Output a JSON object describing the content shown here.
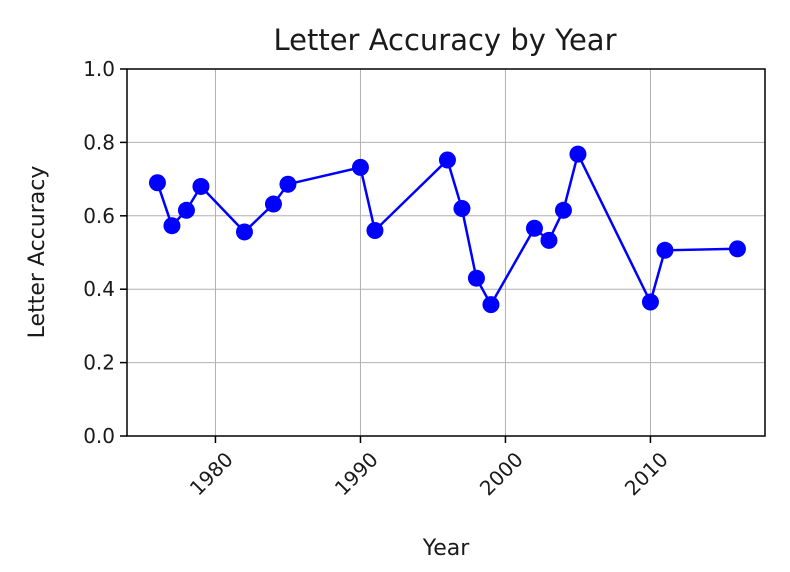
{
  "chart_data": {
    "type": "line",
    "title": "Letter Accuracy by Year",
    "xlabel": "Year",
    "ylabel": "Letter Accuracy",
    "xlim": [
      1973.9,
      1977.9
    ],
    "ylim": [
      0.0,
      1.0
    ],
    "x_ticks": [
      1980,
      1990,
      2000,
      2010
    ],
    "x_tick_labels": [
      "1980",
      "1990",
      "2000",
      "2010"
    ],
    "y_ticks": [
      0.0,
      0.2,
      0.4,
      0.6,
      0.8,
      1.0
    ],
    "y_tick_labels": [
      "0.0",
      "0.2",
      "0.4",
      "0.6",
      "0.8",
      "1.0"
    ],
    "grid": true,
    "series": [
      {
        "color": "#0000ff",
        "marker": "circle",
        "x": [
          1976,
          1977,
          1978,
          1979,
          1982,
          1984,
          1985,
          1990,
          1991,
          1996,
          1997,
          1998,
          1999,
          2002,
          2003,
          2004,
          2005,
          2010,
          2011,
          2016
        ],
        "values": [
          0.69,
          0.573,
          0.615,
          0.68,
          0.556,
          0.632,
          0.686,
          0.732,
          0.56,
          0.752,
          0.62,
          0.43,
          0.358,
          0.566,
          0.533,
          0.615,
          0.768,
          0.365,
          0.506,
          0.51
        ]
      }
    ]
  }
}
